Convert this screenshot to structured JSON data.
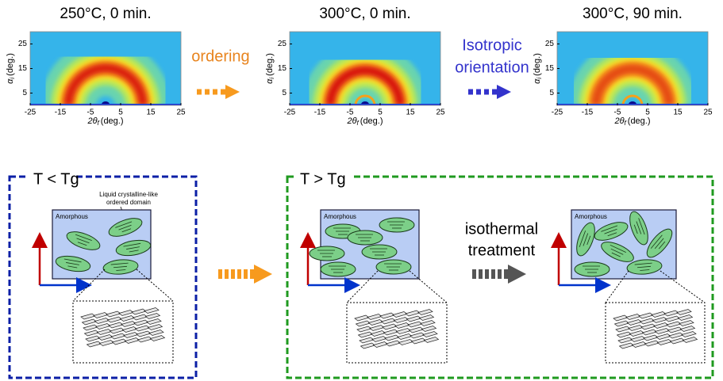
{
  "xray_panels": [
    {
      "title": "250°C, 0 min."
    },
    {
      "title": "300°C, 0 min."
    },
    {
      "title": "300°C, 90 min."
    }
  ],
  "axes": {
    "xlabel": {
      "symbol": "2θ",
      "sub": "f",
      "unit": "(deg.)"
    },
    "ylabel": {
      "symbol": "α",
      "sub": "i",
      "unit": "(deg.)"
    },
    "xlim": [
      -25,
      25
    ],
    "ylim": [
      0,
      30
    ],
    "xticks": [
      -25,
      -15,
      -5,
      5,
      15,
      25
    ],
    "yticks": [
      5,
      15,
      25
    ]
  },
  "top_arrows": [
    {
      "label": [
        "ordering"
      ]
    },
    {
      "label": [
        "Isotropic",
        "orientation"
      ]
    }
  ],
  "regimes": [
    {
      "label": "T < Tg"
    },
    {
      "label": "T > Tg"
    }
  ],
  "domains": [
    {
      "label": "Amorphous"
    },
    {
      "label": "Amorphous"
    },
    {
      "label": "Amorphous"
    }
  ],
  "annotation": [
    "Liquid crystalline-like",
    "ordered domain"
  ],
  "process_arrow": [
    "isothermal",
    "treatment"
  ]
}
